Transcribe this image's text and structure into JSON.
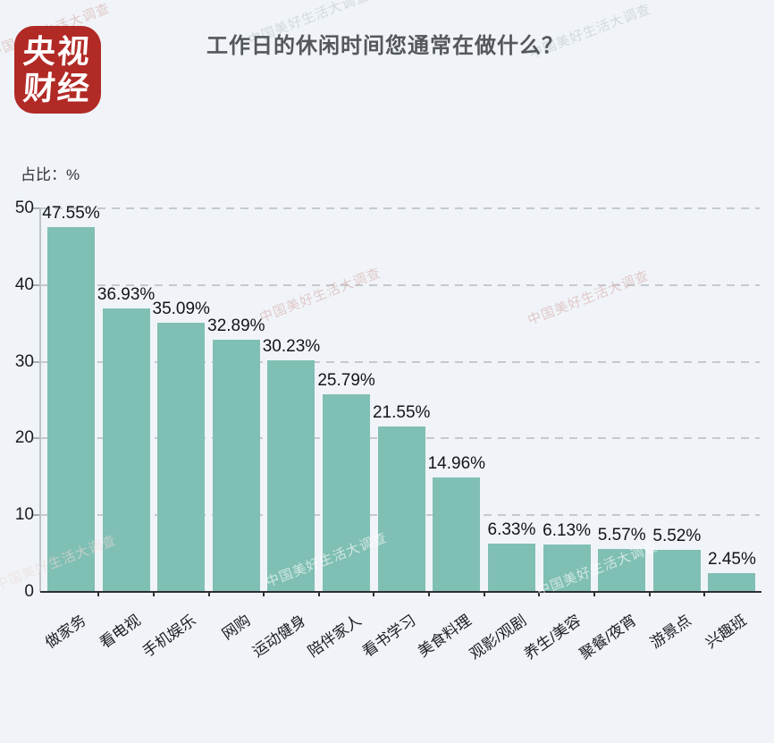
{
  "page": {
    "background_color": "#f0f4f8"
  },
  "logo": {
    "line1": "央视",
    "line2": "财经",
    "color": "#b12a26"
  },
  "watermark": {
    "text": "中国美好生活大调查"
  },
  "chart_data": {
    "type": "bar",
    "title": "工作日的休闲时间您通常在做什么？",
    "unit_label": "占比：%",
    "categories": [
      "做家务",
      "看电视",
      "手机娱乐",
      "网购",
      "运动健身",
      "陪伴家人",
      "看书学习",
      "美食料理",
      "观影/观剧",
      "养生/美容",
      "聚餐/夜宵",
      "游景点",
      "兴趣班"
    ],
    "values": [
      47.55,
      36.93,
      35.09,
      32.89,
      30.23,
      25.79,
      21.55,
      14.96,
      6.33,
      6.13,
      5.57,
      5.52,
      2.45
    ],
    "value_labels": [
      "47.55%",
      "36.93%",
      "35.09%",
      "32.89%",
      "30.23%",
      "25.79%",
      "21.55%",
      "14.96%",
      "6.33%",
      "6.13%",
      "5.57%",
      "5.52%",
      "2.45%"
    ],
    "xlabel": "",
    "ylabel": "占比：%",
    "ylim": [
      0,
      50
    ],
    "yticks": [
      0,
      10,
      20,
      30,
      40,
      50
    ],
    "grid": "horizontal-dashed",
    "legend": "none",
    "bar_color": "#80bfb3",
    "value_label_color": "#121417",
    "xlabel_rotation_deg": -35
  }
}
